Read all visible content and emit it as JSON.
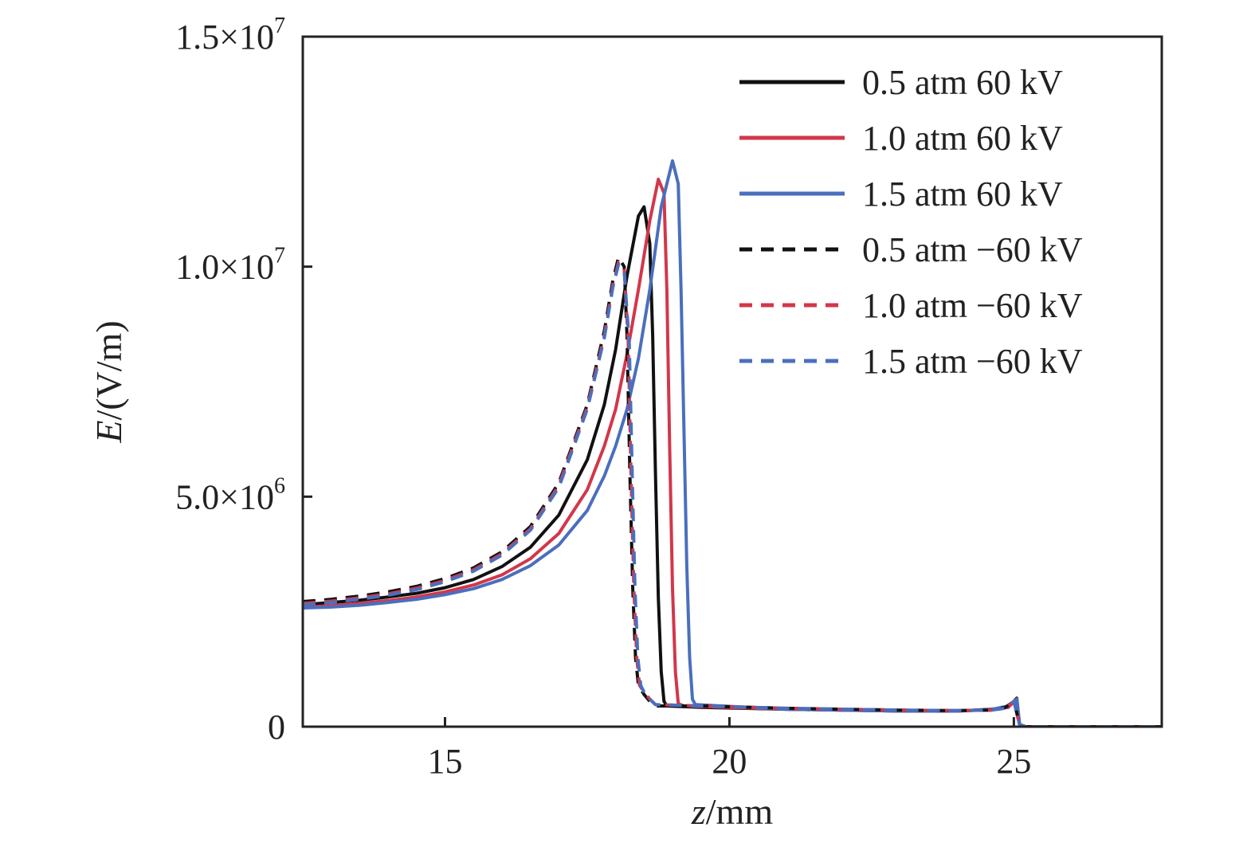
{
  "chart_data": {
    "type": "line",
    "xlabel_var": "z",
    "xlabel_unit": "/mm",
    "ylabel_var": "E",
    "ylabel_unit": "/(V/m)",
    "xlim": [
      12.5,
      27.6
    ],
    "ylim": [
      0,
      15000000
    ],
    "x_ticks": [
      15,
      20,
      25
    ],
    "x_tick_labels": [
      "15",
      "20",
      "25"
    ],
    "y_ticks": [
      {
        "value": 0,
        "mant": "0",
        "exp": ""
      },
      {
        "value": 5000000,
        "mant": "5.0×10",
        "exp": "6"
      },
      {
        "value": 10000000,
        "mant": "1.0×10",
        "exp": "7"
      },
      {
        "value": 15000000,
        "mant": "1.5×10",
        "exp": "7"
      }
    ],
    "grid": false,
    "legend_position": "top-right",
    "series": [
      {
        "name": "0.5 atm 60 kV",
        "color": "#111111",
        "dash": "solid",
        "points": [
          [
            12.5,
            2650000.0
          ],
          [
            13,
            2700000.0
          ],
          [
            13.5,
            2750000.0
          ],
          [
            14,
            2820000.0
          ],
          [
            14.5,
            2900000.0
          ],
          [
            15,
            3020000.0
          ],
          [
            15.5,
            3200000.0
          ],
          [
            16,
            3480000.0
          ],
          [
            16.5,
            3900000.0
          ],
          [
            17,
            4600000.0
          ],
          [
            17.5,
            5800000.0
          ],
          [
            17.8,
            7000000.0
          ],
          [
            18,
            8200000.0
          ],
          [
            18.2,
            9800000.0
          ],
          [
            18.4,
            11100000.0
          ],
          [
            18.5,
            11300000.0
          ],
          [
            18.6,
            10500000.0
          ],
          [
            18.65,
            8500000.0
          ],
          [
            18.7,
            5500000.0
          ],
          [
            18.75,
            2800000.0
          ],
          [
            18.8,
            1200000.0
          ],
          [
            18.85,
            550000.0
          ],
          [
            18.9,
            450000.0
          ],
          [
            19.5,
            420000.0
          ],
          [
            21,
            380000.0
          ],
          [
            22,
            360000.0
          ],
          [
            23,
            340000.0
          ],
          [
            24,
            340000.0
          ],
          [
            24.6,
            380000.0
          ],
          [
            24.9,
            420000.0
          ],
          [
            25.05,
            620000.0
          ],
          [
            25.1,
            50000.0
          ],
          [
            25.2,
            0.0
          ],
          [
            27.6,
            0.0
          ]
        ]
      },
      {
        "name": "1.0 atm 60 kV",
        "color": "#d2374a",
        "dash": "solid",
        "points": [
          [
            12.5,
            2600000.0
          ],
          [
            13,
            2630000.0
          ],
          [
            13.5,
            2680000.0
          ],
          [
            14,
            2740000.0
          ],
          [
            14.5,
            2820000.0
          ],
          [
            15,
            2930000.0
          ],
          [
            15.5,
            3080000.0
          ],
          [
            16,
            3300000.0
          ],
          [
            16.5,
            3650000.0
          ],
          [
            17,
            4200000.0
          ],
          [
            17.5,
            5150000.0
          ],
          [
            17.8,
            6100000.0
          ],
          [
            18,
            6900000.0
          ],
          [
            18.2,
            8100000.0
          ],
          [
            18.4,
            9500000.0
          ],
          [
            18.6,
            11000000.0
          ],
          [
            18.75,
            11900000.0
          ],
          [
            18.85,
            11600000.0
          ],
          [
            18.9,
            9500000.0
          ],
          [
            18.95,
            6000000.0
          ],
          [
            19.0,
            3000000.0
          ],
          [
            19.05,
            1200000.0
          ],
          [
            19.1,
            500000.0
          ],
          [
            19.2,
            450000.0
          ],
          [
            21,
            380000.0
          ],
          [
            22,
            360000.0
          ],
          [
            23,
            340000.0
          ],
          [
            24,
            340000.0
          ],
          [
            24.6,
            370000.0
          ],
          [
            24.9,
            420000.0
          ],
          [
            25.05,
            600000.0
          ],
          [
            25.1,
            50000.0
          ],
          [
            25.2,
            0.0
          ],
          [
            27.6,
            0.0
          ]
        ]
      },
      {
        "name": "1.5 atm 60 kV",
        "color": "#4a6fbd",
        "dash": "solid",
        "points": [
          [
            12.5,
            2580000.0
          ],
          [
            13,
            2600000.0
          ],
          [
            13.5,
            2640000.0
          ],
          [
            14,
            2700000.0
          ],
          [
            14.5,
            2770000.0
          ],
          [
            15,
            2870000.0
          ],
          [
            15.5,
            3000000.0
          ],
          [
            16,
            3200000.0
          ],
          [
            16.5,
            3500000.0
          ],
          [
            17,
            3950000.0
          ],
          [
            17.5,
            4700000.0
          ],
          [
            17.8,
            5450000.0
          ],
          [
            18,
            6100000.0
          ],
          [
            18.2,
            6900000.0
          ],
          [
            18.4,
            8000000.0
          ],
          [
            18.6,
            9500000.0
          ],
          [
            18.8,
            11300000.0
          ],
          [
            19.0,
            12300000.0
          ],
          [
            19.1,
            11800000.0
          ],
          [
            19.15,
            9500000.0
          ],
          [
            19.2,
            6500000.0
          ],
          [
            19.25,
            3500000.0
          ],
          [
            19.3,
            1500000.0
          ],
          [
            19.35,
            600000.0
          ],
          [
            19.4,
            480000.0
          ],
          [
            21,
            380000.0
          ],
          [
            22,
            360000.0
          ],
          [
            23,
            340000.0
          ],
          [
            24,
            340000.0
          ],
          [
            24.6,
            370000.0
          ],
          [
            24.9,
            450000.0
          ],
          [
            25.05,
            600000.0
          ],
          [
            25.1,
            50000.0
          ],
          [
            25.2,
            0.0
          ],
          [
            27.6,
            0.0
          ]
        ]
      },
      {
        "name": "0.5 atm −60 kV",
        "color": "#111111",
        "dash": "dash",
        "points": [
          [
            12.5,
            2720000.0
          ],
          [
            13,
            2770000.0
          ],
          [
            13.5,
            2840000.0
          ],
          [
            14,
            2930000.0
          ],
          [
            14.5,
            3050000.0
          ],
          [
            15,
            3220000.0
          ],
          [
            15.5,
            3450000.0
          ],
          [
            16,
            3800000.0
          ],
          [
            16.5,
            4350000.0
          ],
          [
            17,
            5300000.0
          ],
          [
            17.5,
            7000000.0
          ],
          [
            17.8,
            8600000.0
          ],
          [
            17.95,
            9700000.0
          ],
          [
            18.05,
            10200000.0
          ],
          [
            18.15,
            10000000.0
          ],
          [
            18.2,
            8500000.0
          ],
          [
            18.25,
            5500000.0
          ],
          [
            18.3,
            3000000.0
          ],
          [
            18.35,
            1500000.0
          ],
          [
            18.4,
            900000.0
          ],
          [
            18.5,
            700000.0
          ],
          [
            18.6,
            550000.0
          ],
          [
            18.7,
            450000.0
          ],
          [
            19.5,
            450000.0
          ],
          [
            21,
            400000.0
          ],
          [
            22,
            380000.0
          ],
          [
            23,
            360000.0
          ],
          [
            24,
            350000.0
          ],
          [
            24.6,
            360000.0
          ],
          [
            24.85,
            420000.0
          ],
          [
            25.0,
            550000.0
          ],
          [
            25.1,
            50000.0
          ],
          [
            25.2,
            0.0
          ],
          [
            27.6,
            0.0
          ]
        ]
      },
      {
        "name": "1.0 atm −60 kV",
        "color": "#d2374a",
        "dash": "dash",
        "points": [
          [
            12.5,
            2680000.0
          ],
          [
            13,
            2730000.0
          ],
          [
            13.5,
            2800000.0
          ],
          [
            14,
            2890000.0
          ],
          [
            14.5,
            3010000.0
          ],
          [
            15,
            3180000.0
          ],
          [
            15.5,
            3410000.0
          ],
          [
            16,
            3760000.0
          ],
          [
            16.5,
            4300000.0
          ],
          [
            17,
            5250000.0
          ],
          [
            17.5,
            6950000.0
          ],
          [
            17.8,
            8500000.0
          ],
          [
            17.95,
            9600000.0
          ],
          [
            18.05,
            10100000.0
          ],
          [
            18.15,
            9950000.0
          ],
          [
            18.22,
            8400000.0
          ],
          [
            18.27,
            5500000.0
          ],
          [
            18.32,
            3000000.0
          ],
          [
            18.37,
            1500000.0
          ],
          [
            18.42,
            900000.0
          ],
          [
            18.5,
            750000.0
          ],
          [
            18.6,
            600000.0
          ],
          [
            18.7,
            480000.0
          ],
          [
            19.5,
            450000.0
          ],
          [
            21,
            400000.0
          ],
          [
            22,
            380000.0
          ],
          [
            23,
            360000.0
          ],
          [
            24,
            350000.0
          ],
          [
            24.6,
            360000.0
          ],
          [
            24.85,
            400000.0
          ],
          [
            25.0,
            550000.0
          ],
          [
            25.1,
            50000.0
          ],
          [
            25.2,
            0.0
          ],
          [
            27.6,
            0.0
          ]
        ]
      },
      {
        "name": "1.5 atm −60 kV",
        "color": "#4a6fbd",
        "dash": "dash",
        "points": [
          [
            12.5,
            2650000.0
          ],
          [
            13,
            2700000.0
          ],
          [
            13.5,
            2770000.0
          ],
          [
            14,
            2860000.0
          ],
          [
            14.5,
            2980000.0
          ],
          [
            15,
            3150000.0
          ],
          [
            15.5,
            3380000.0
          ],
          [
            16,
            3730000.0
          ],
          [
            16.5,
            4270000.0
          ],
          [
            17,
            5200000.0
          ],
          [
            17.5,
            6900000.0
          ],
          [
            17.8,
            8450000.0
          ],
          [
            17.95,
            9550000.0
          ],
          [
            18.05,
            10050000.0
          ],
          [
            18.15,
            9900000.0
          ],
          [
            18.24,
            8300000.0
          ],
          [
            18.29,
            5500000.0
          ],
          [
            18.34,
            3000000.0
          ],
          [
            18.39,
            1500000.0
          ],
          [
            18.44,
            900000.0
          ],
          [
            18.5,
            750000.0
          ],
          [
            18.6,
            600000.0
          ],
          [
            18.7,
            480000.0
          ],
          [
            19.5,
            450000.0
          ],
          [
            21,
            400000.0
          ],
          [
            22,
            380000.0
          ],
          [
            23,
            360000.0
          ],
          [
            24,
            350000.0
          ],
          [
            24.6,
            360000.0
          ],
          [
            24.85,
            400000.0
          ],
          [
            25.0,
            550000.0
          ],
          [
            25.1,
            50000.0
          ],
          [
            25.2,
            0.0
          ],
          [
            27.6,
            0.0
          ]
        ]
      }
    ]
  }
}
